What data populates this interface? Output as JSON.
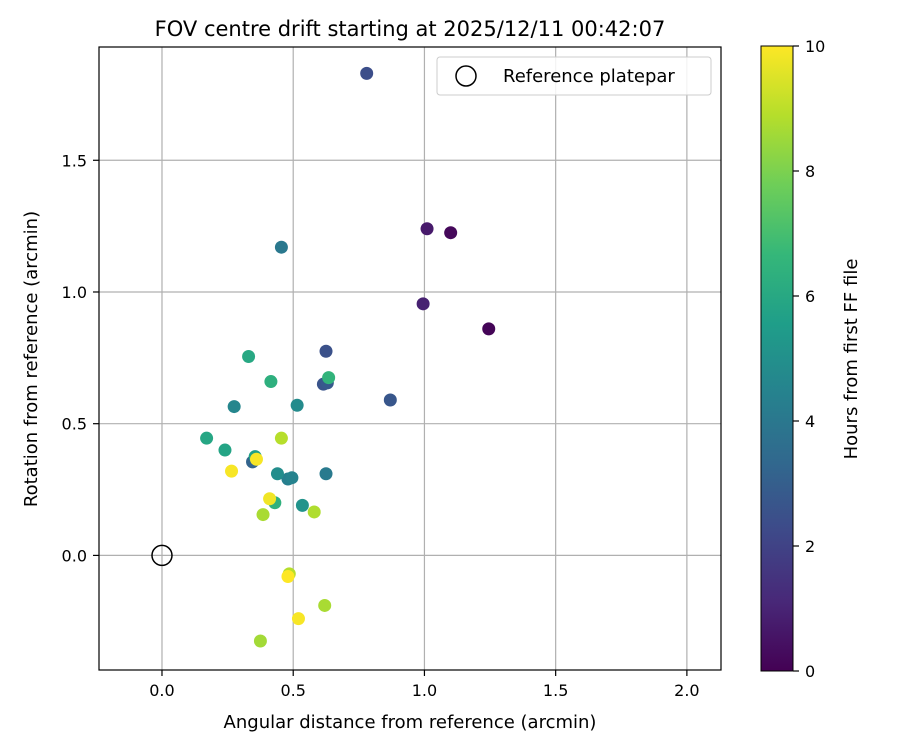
{
  "chart_data": {
    "type": "scatter",
    "title": "FOV centre drift starting at 2025/12/11 00:42:07",
    "xlabel": "Angular distance from reference (arcmin)",
    "ylabel": "Rotation from reference (arcmin)",
    "xlim": [
      -0.24,
      2.13
    ],
    "ylim": [
      -0.435,
      1.93
    ],
    "xticks": [
      0.0,
      0.5,
      1.0,
      1.5,
      2.0
    ],
    "xtick_labels": [
      "0.0",
      "0.5",
      "1.0",
      "1.5",
      "2.0"
    ],
    "yticks": [
      0.0,
      0.5,
      1.0,
      1.5
    ],
    "ytick_labels": [
      "0.0",
      "0.5",
      "1.0",
      "1.5"
    ],
    "grid": true,
    "legend": {
      "placement": "upper-right",
      "entries": [
        "Reference platepar"
      ]
    },
    "reference_point": {
      "x": 0.0,
      "y": 0.0,
      "label": "Reference platepar"
    },
    "colorbar": {
      "label": "Hours from first FF file",
      "range": [
        0,
        10
      ],
      "ticks": [
        0,
        2,
        4,
        6,
        8,
        10
      ],
      "tick_labels": [
        "0",
        "2",
        "4",
        "6",
        "8",
        "10"
      ],
      "colormap": [
        "#440154",
        "#482878",
        "#3e4989",
        "#31688e",
        "#26828e",
        "#1f9e89",
        "#35b779",
        "#6ece58",
        "#b5de2b",
        "#fde725"
      ]
    },
    "series": [
      {
        "name": "FOV centre drift",
        "points": [
          {
            "x": 1.1,
            "y": 1.225,
            "hours": 0.2
          },
          {
            "x": 1.245,
            "y": 0.86,
            "hours": 0.1
          },
          {
            "x": 1.01,
            "y": 1.24,
            "hours": 0.7
          },
          {
            "x": 0.995,
            "y": 0.955,
            "hours": 0.9
          },
          {
            "x": 0.78,
            "y": 1.83,
            "hours": 2.4
          },
          {
            "x": 0.625,
            "y": 0.775,
            "hours": 2.5
          },
          {
            "x": 0.615,
            "y": 0.65,
            "hours": 2.6
          },
          {
            "x": 0.63,
            "y": 0.655,
            "hours": 2.8
          },
          {
            "x": 0.87,
            "y": 0.59,
            "hours": 2.7
          },
          {
            "x": 0.345,
            "y": 0.355,
            "hours": 3.2
          },
          {
            "x": 0.455,
            "y": 1.17,
            "hours": 4.0
          },
          {
            "x": 0.625,
            "y": 0.31,
            "hours": 4.1
          },
          {
            "x": 0.48,
            "y": 0.29,
            "hours": 4.3
          },
          {
            "x": 0.495,
            "y": 0.295,
            "hours": 4.5
          },
          {
            "x": 0.275,
            "y": 0.565,
            "hours": 4.6
          },
          {
            "x": 0.515,
            "y": 0.57,
            "hours": 4.8
          },
          {
            "x": 0.44,
            "y": 0.31,
            "hours": 4.9
          },
          {
            "x": 0.535,
            "y": 0.19,
            "hours": 5.1
          },
          {
            "x": 0.355,
            "y": 0.375,
            "hours": 5.6
          },
          {
            "x": 0.24,
            "y": 0.4,
            "hours": 5.8
          },
          {
            "x": 0.17,
            "y": 0.445,
            "hours": 5.9
          },
          {
            "x": 0.33,
            "y": 0.755,
            "hours": 6.0
          },
          {
            "x": 0.415,
            "y": 0.66,
            "hours": 6.3
          },
          {
            "x": 0.43,
            "y": 0.2,
            "hours": 6.4
          },
          {
            "x": 0.635,
            "y": 0.675,
            "hours": 6.5
          },
          {
            "x": 0.455,
            "y": 0.445,
            "hours": 8.9
          },
          {
            "x": 0.58,
            "y": 0.165,
            "hours": 8.8
          },
          {
            "x": 0.385,
            "y": 0.155,
            "hours": 8.7
          },
          {
            "x": 0.485,
            "y": -0.07,
            "hours": 8.9
          },
          {
            "x": 0.62,
            "y": -0.19,
            "hours": 8.7
          },
          {
            "x": 0.375,
            "y": -0.325,
            "hours": 8.6
          },
          {
            "x": 0.265,
            "y": 0.32,
            "hours": 9.9
          },
          {
            "x": 0.36,
            "y": 0.365,
            "hours": 9.9
          },
          {
            "x": 0.41,
            "y": 0.215,
            "hours": 9.8
          },
          {
            "x": 0.48,
            "y": -0.08,
            "hours": 10.0
          },
          {
            "x": 0.52,
            "y": -0.24,
            "hours": 9.9
          }
        ]
      }
    ]
  }
}
